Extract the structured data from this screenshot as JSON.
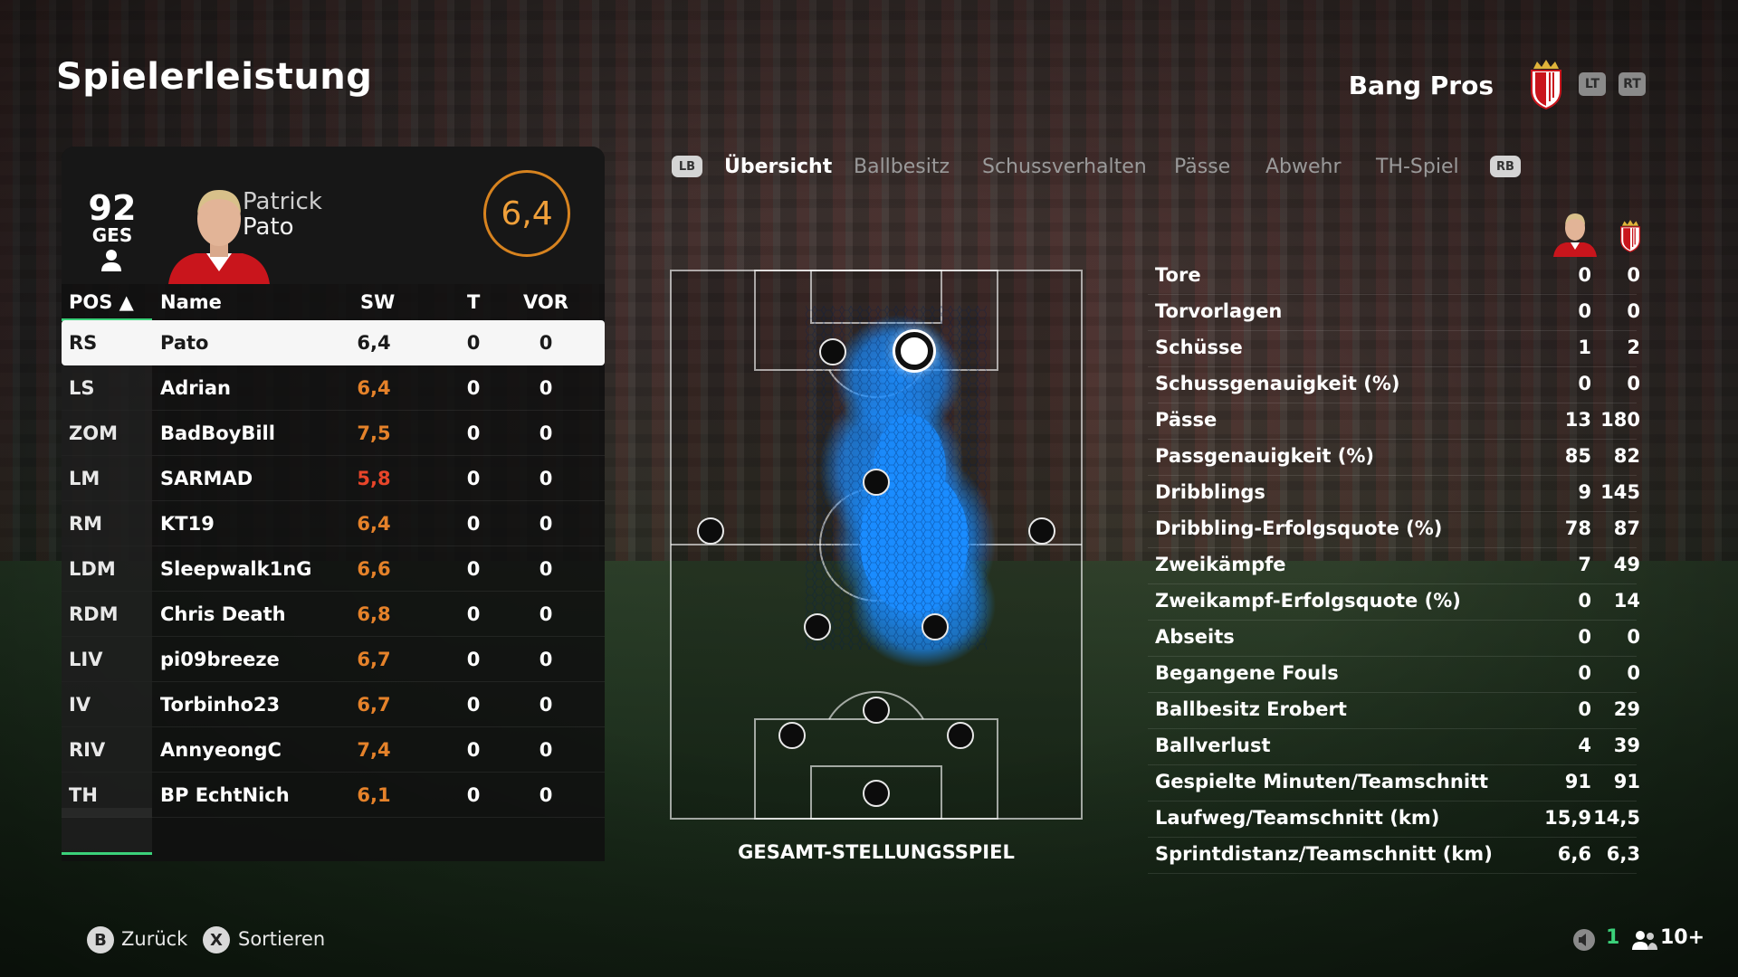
{
  "page": {
    "title": "Spielerleistung"
  },
  "team": {
    "name": "Bang Pros",
    "crest_icon": "monaco-crest-icon"
  },
  "triggers": {
    "left": "LT",
    "right": "RT"
  },
  "player_card": {
    "overall": "92",
    "overall_label": "GES",
    "first_name": "Patrick",
    "last_name": "Pato",
    "rating": "6,4"
  },
  "table": {
    "headers": {
      "pos": "POS ▲",
      "name": "Name",
      "sw": "SW",
      "t": "T",
      "vor": "VOR"
    },
    "rows": [
      {
        "pos": "RS",
        "name": "Pato",
        "sw": "6,4",
        "t": "0",
        "vor": "0"
      },
      {
        "pos": "LS",
        "name": "Adrian",
        "sw": "6,4",
        "t": "0",
        "vor": "0"
      },
      {
        "pos": "ZOM",
        "name": "BadBoyBill",
        "sw": "7,5",
        "t": "0",
        "vor": "0"
      },
      {
        "pos": "LM",
        "name": "SARMAD",
        "sw": "5,8",
        "t": "0",
        "vor": "0"
      },
      {
        "pos": "RM",
        "name": "KT19",
        "sw": "6,4",
        "t": "0",
        "vor": "0"
      },
      {
        "pos": "LDM",
        "name": "Sleepwalk1nG",
        "sw": "6,6",
        "t": "0",
        "vor": "0"
      },
      {
        "pos": "RDM",
        "name": "Chris Death",
        "sw": "6,8",
        "t": "0",
        "vor": "0"
      },
      {
        "pos": "LIV",
        "name": "pi09breeze",
        "sw": "6,7",
        "t": "0",
        "vor": "0"
      },
      {
        "pos": "IV",
        "name": "Torbinho23",
        "sw": "6,7",
        "t": "0",
        "vor": "0"
      },
      {
        "pos": "RIV",
        "name": "AnnyeongC",
        "sw": "7,4",
        "t": "0",
        "vor": "0"
      },
      {
        "pos": "TH",
        "name": "BP EchtNich",
        "sw": "6,1",
        "t": "0",
        "vor": "0"
      }
    ]
  },
  "tabs": {
    "left_bumper": "LB",
    "right_bumper": "RB",
    "items": [
      "Übersicht",
      "Ballbesitz",
      "Schussverhalten",
      "Pässe",
      "Abwehr",
      "TH-Spiel"
    ],
    "active": "Übersicht"
  },
  "pitch": {
    "label": "GESAMT-STELLUNGSSPIEL"
  },
  "stats": {
    "rows": [
      {
        "label": "Tore",
        "player": "0",
        "team": "0"
      },
      {
        "label": "Torvorlagen",
        "player": "0",
        "team": "0"
      },
      {
        "label": "Schüsse",
        "player": "1",
        "team": "2"
      },
      {
        "label": "Schussgenauigkeit (%)",
        "player": "0",
        "team": "0"
      },
      {
        "label": "Pässe",
        "player": "13",
        "team": "180"
      },
      {
        "label": "Passgenauigkeit (%)",
        "player": "85",
        "team": "82"
      },
      {
        "label": "Dribblings",
        "player": "9",
        "team": "145"
      },
      {
        "label": "Dribbling-Erfolgsquote (%)",
        "player": "78",
        "team": "87"
      },
      {
        "label": "Zweikämpfe",
        "player": "7",
        "team": "49"
      },
      {
        "label": "Zweikampf-Erfolgsquote (%)",
        "player": "0",
        "team": "14"
      },
      {
        "label": "Abseits",
        "player": "0",
        "team": "0"
      },
      {
        "label": "Begangene Fouls",
        "player": "0",
        "team": "0"
      },
      {
        "label": "Ballbesitz Erobert",
        "player": "0",
        "team": "29"
      },
      {
        "label": "Ballverlust",
        "player": "4",
        "team": "39"
      },
      {
        "label": "Gespielte Minuten/Teamschnitt",
        "player": "91",
        "team": "91"
      },
      {
        "label": "Laufweg/Teamschnitt (km)",
        "player": "15,9",
        "team": "14,5"
      },
      {
        "label": "Sprintdistanz/Teamschnitt (km)",
        "player": "6,6",
        "team": "6,3"
      }
    ]
  },
  "footer": {
    "back_key": "B",
    "back_label": "Zurück",
    "sort_key": "X",
    "sort_label": "Sortieren",
    "mic_count": "1",
    "players_count": "10+"
  },
  "colors": {
    "accent_green": "#3bd17a",
    "rating_orange": "#e5822a",
    "heat_blue": "#1a8cff"
  }
}
